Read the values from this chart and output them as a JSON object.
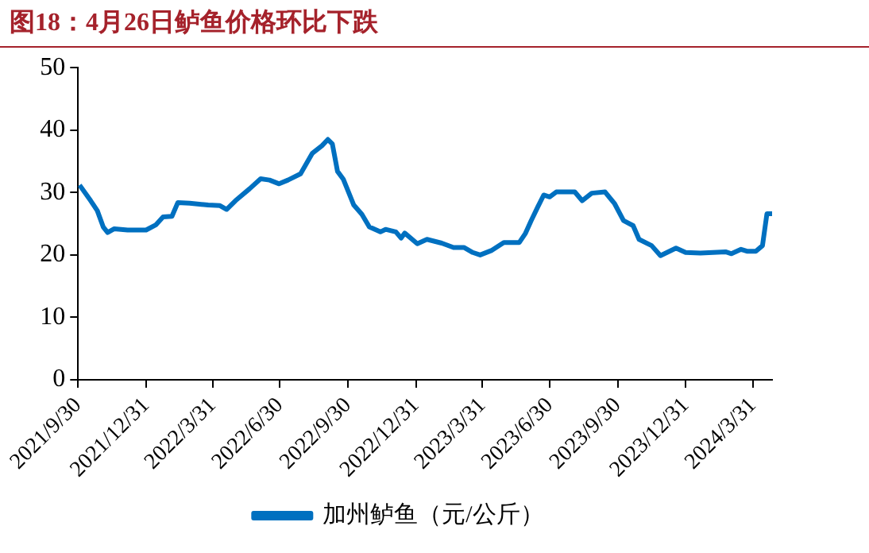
{
  "chart_data": {
    "type": "line",
    "title": "图18：4月26日鲈鱼价格环比下跌",
    "x": [
      "2021-10-02",
      "2021-10-17",
      "2021-10-26",
      "2021-11-03",
      "2021-11-09",
      "2021-11-18",
      "2021-12-06",
      "2021-12-31",
      "2022-01-13",
      "2022-01-23",
      "2022-02-04",
      "2022-02-12",
      "2022-02-28",
      "2022-03-25",
      "2022-04-10",
      "2022-04-19",
      "2022-05-01",
      "2022-05-20",
      "2022-06-04",
      "2022-06-16",
      "2022-06-29",
      "2022-07-11",
      "2022-07-28",
      "2022-08-13",
      "2022-08-26",
      "2022-09-03",
      "2022-09-09",
      "2022-09-16",
      "2022-09-24",
      "2022-10-08",
      "2022-10-19",
      "2022-10-29",
      "2022-11-13",
      "2022-11-20",
      "2022-12-04",
      "2022-12-11",
      "2022-12-16",
      "2023-01-02",
      "2023-01-15",
      "2023-02-04",
      "2023-02-20",
      "2023-03-06",
      "2023-03-18",
      "2023-03-28",
      "2023-04-12",
      "2023-04-29",
      "2023-05-20",
      "2023-05-28",
      "2023-06-05",
      "2023-06-14",
      "2023-06-22",
      "2023-06-30",
      "2023-07-09",
      "2023-08-03",
      "2023-08-13",
      "2023-08-26",
      "2023-09-13",
      "2023-09-26",
      "2023-10-08",
      "2023-10-21",
      "2023-10-29",
      "2023-11-15",
      "2023-11-27",
      "2023-12-18",
      "2023-12-31",
      "2024-01-20",
      "2024-02-23",
      "2024-03-02",
      "2024-03-15",
      "2024-03-23",
      "2024-04-04",
      "2024-04-13",
      "2024-04-19",
      "2024-04-26"
    ],
    "series": [
      {
        "name": "加州鲈鱼（元/公斤）",
        "color": "#0070c0",
        "values": [
          31.2,
          28.7,
          27.1,
          24.5,
          23.6,
          24.2,
          24.0,
          24.0,
          24.8,
          26.1,
          26.2,
          28.4,
          28.3,
          28.0,
          27.9,
          27.3,
          28.7,
          30.6,
          32.2,
          32.0,
          31.4,
          32.0,
          33.0,
          36.3,
          37.5,
          38.5,
          37.8,
          33.4,
          32.1,
          28.0,
          26.5,
          24.5,
          23.7,
          24.1,
          23.7,
          22.7,
          23.5,
          21.8,
          22.5,
          21.9,
          21.2,
          21.2,
          20.4,
          20.0,
          20.7,
          22.0,
          22.0,
          23.4,
          25.5,
          27.7,
          29.6,
          29.3,
          30.1,
          30.1,
          28.7,
          29.9,
          30.1,
          28.2,
          25.5,
          24.7,
          22.5,
          21.5,
          19.9,
          21.1,
          20.4,
          20.3,
          20.5,
          20.2,
          20.9,
          20.6,
          20.6,
          21.5,
          26.6,
          26.6
        ]
      }
    ],
    "xlim": [
      "2021-09-30",
      "2024-04-26"
    ],
    "xticks": [
      {
        "value": "2021-09-30",
        "label": "2021/9/30"
      },
      {
        "value": "2021-12-31",
        "label": "2021/12/31"
      },
      {
        "value": "2022-03-31",
        "label": "2022/3/31"
      },
      {
        "value": "2022-06-30",
        "label": "2022/6/30"
      },
      {
        "value": "2022-09-30",
        "label": "2022/9/30"
      },
      {
        "value": "2022-12-31",
        "label": "2022/12/31"
      },
      {
        "value": "2023-03-31",
        "label": "2023/3/31"
      },
      {
        "value": "2023-06-30",
        "label": "2023/6/30"
      },
      {
        "value": "2023-09-30",
        "label": "2023/9/30"
      },
      {
        "value": "2023-12-31",
        "label": "2023/12/31"
      },
      {
        "value": "2024-03-31",
        "label": "2024/3/31"
      }
    ],
    "ylim": [
      0,
      50
    ],
    "yticks": [
      0,
      10,
      20,
      30,
      40,
      50
    ],
    "grid": false,
    "legend": "bottom",
    "marker": "none",
    "line_style": "solid"
  }
}
